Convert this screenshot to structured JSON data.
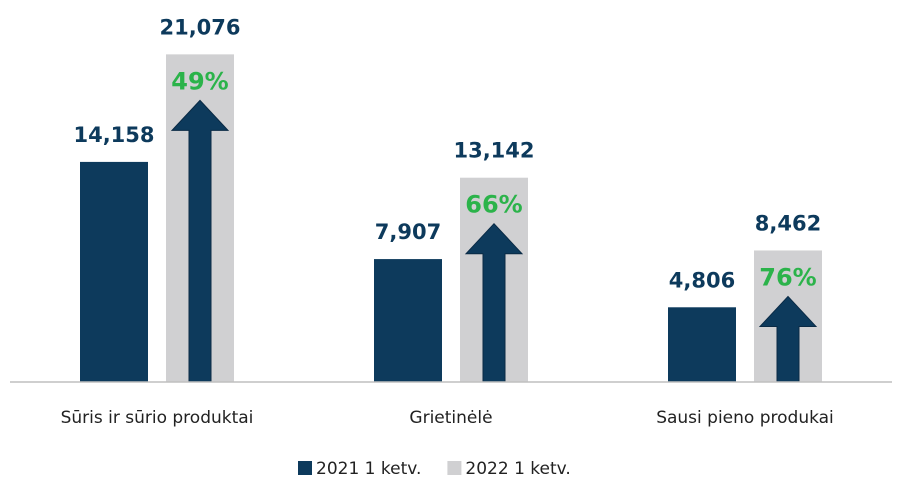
{
  "chart_data": {
    "type": "bar",
    "categories": [
      "Sūris ir sūrio produktai",
      "Grietinėlė",
      "Sausi pieno produkai"
    ],
    "series": [
      {
        "name": "2021 1 ketv.",
        "color": "#0d3a5c",
        "values": [
          14158,
          7907,
          4806
        ],
        "value_labels": [
          "14,158",
          "7,907",
          "4,806"
        ]
      },
      {
        "name": "2022 1 ketv.",
        "color": "#d0d0d2",
        "values": [
          21076,
          13142,
          8462
        ],
        "value_labels": [
          "21,076",
          "13,142",
          "8,462"
        ]
      }
    ],
    "annotations": [
      "49%",
      "66%",
      "76%"
    ],
    "annotation_color": "#2bb34a",
    "arrow_color": "#0d3a5c",
    "ylim": [
      0,
      22000
    ]
  }
}
